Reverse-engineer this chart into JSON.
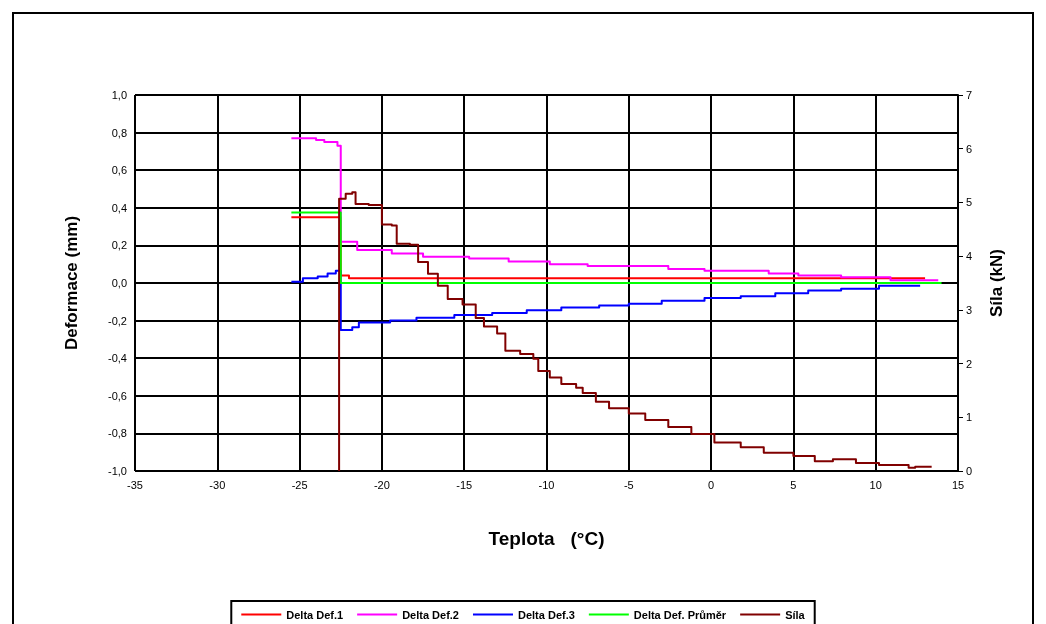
{
  "chart_data": {
    "type": "step",
    "xlabel": "Teplota   (°C)",
    "ylabel": "Deformace (mm)",
    "y2label": "Síla (kN)",
    "xlim": [
      -35,
      15
    ],
    "xticks": [
      -35,
      -30,
      -25,
      -20,
      -15,
      -10,
      -5,
      0,
      5,
      10,
      15
    ],
    "ylim": [
      -1,
      1
    ],
    "yticks": [
      {
        "value": -1,
        "label": "-1,0"
      },
      {
        "value": -0.8,
        "label": "-0,8"
      },
      {
        "value": -0.6,
        "label": "-0,6"
      },
      {
        "value": -0.4,
        "label": "-0,4"
      },
      {
        "value": -0.2,
        "label": "-0,2"
      },
      {
        "value": 0,
        "label": "0,0"
      },
      {
        "value": 0.2,
        "label": "0,2"
      },
      {
        "value": 0.4,
        "label": "0,4"
      },
      {
        "value": 0.6,
        "label": "0,6"
      },
      {
        "value": 0.8,
        "label": "0,8"
      },
      {
        "value": 1,
        "label": "1,0"
      }
    ],
    "y2lim": [
      0,
      7
    ],
    "y2ticks": [
      0,
      1,
      2,
      3,
      4,
      5,
      6,
      7
    ],
    "grid": true,
    "legend": "bottom",
    "marker": "none",
    "line_style": "solid",
    "series": [
      {
        "name": "Delta Def.1",
        "color": "#ff0000",
        "x": [
          -25.5,
          -22.6,
          -22.5,
          -22,
          13
        ],
        "values": [
          0.35,
          0.35,
          0.04,
          0.025,
          0.025
        ]
      },
      {
        "name": "Delta Def.2",
        "color": "#ff00ff",
        "x": [
          -25.5,
          -24,
          -23.5,
          -22.7,
          -22.5,
          -21.5,
          -19.4,
          -17.5,
          -14.7,
          -12.3,
          -9.8,
          -7.5,
          -2.6,
          -0.4,
          3.5,
          5.3,
          7.9,
          10.9,
          13.8
        ],
        "values": [
          0.77,
          0.76,
          0.75,
          0.73,
          0.22,
          0.175,
          0.157,
          0.14,
          0.13,
          0.115,
          0.1,
          0.09,
          0.075,
          0.065,
          0.05,
          0.04,
          0.03,
          0.015,
          0.015
        ]
      },
      {
        "name": "Delta Def.3",
        "color": "#0000ff",
        "x": [
          -25.5,
          -24.8,
          -23.9,
          -23.3,
          -22.8,
          -22.5,
          -21.8,
          -21.4,
          -19.5,
          -17.9,
          -15.6,
          -13.3,
          -11.2,
          -9.1,
          -6.8,
          -5,
          -3,
          -0.4,
          1.8,
          3.9,
          5.9,
          7.9,
          10.2,
          12.7
        ],
        "values": [
          0.007,
          0.025,
          0.035,
          0.05,
          0.065,
          -0.25,
          -0.235,
          -0.21,
          -0.2,
          -0.185,
          -0.17,
          -0.16,
          -0.145,
          -0.13,
          -0.12,
          -0.11,
          -0.095,
          -0.08,
          -0.07,
          -0.055,
          -0.04,
          -0.03,
          -0.015,
          -0.015
        ]
      },
      {
        "name": "Delta Def. Průměr",
        "color": "#00ff00",
        "x": [
          -25.5,
          -22.6,
          -22.5,
          14
        ],
        "values": [
          0.375,
          0.375,
          0,
          0
        ]
      },
      {
        "name": "Síla",
        "color": "#800000",
        "axis": "y2",
        "x": [
          -22.6,
          -22.6,
          -22.2,
          -21.8,
          -21.6,
          -20.8,
          -20,
          -19.4,
          -19.1,
          -18.3,
          -17.8,
          -17.2,
          -16.6,
          -16,
          -15.1,
          -14.3,
          -13.8,
          -13,
          -12.5,
          -11.6,
          -10.8,
          -10.5,
          -9.8,
          -9.1,
          -8.2,
          -7.8,
          -7,
          -6.2,
          -5,
          -4,
          -2.6,
          -1.2,
          0.2,
          1.8,
          3.2,
          5,
          6.3,
          7.4,
          8.8,
          10.2,
          12,
          12.4,
          13.4
        ],
        "values": [
          0,
          5.07,
          5.16,
          5.19,
          4.97,
          4.95,
          4.59,
          4.57,
          4.23,
          4.21,
          3.89,
          3.67,
          3.45,
          3.2,
          3.1,
          2.85,
          2.69,
          2.56,
          2.24,
          2.18,
          2.09,
          1.86,
          1.74,
          1.62,
          1.55,
          1.45,
          1.29,
          1.17,
          1.07,
          0.95,
          0.82,
          0.69,
          0.53,
          0.44,
          0.34,
          0.28,
          0.18,
          0.22,
          0.15,
          0.11,
          0.06,
          0.08,
          0.08
        ]
      }
    ]
  }
}
